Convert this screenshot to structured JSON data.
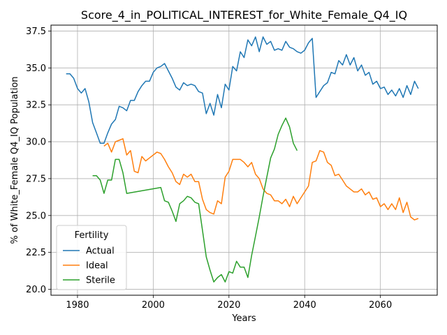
{
  "chart_data": {
    "type": "line",
    "title": "Score_4_in_POLITICAL_INTEREST_for_White_Female_Q4_IQ",
    "xlabel": "Years",
    "ylabel": "% of White_Female Q4_IQ Population",
    "xlim": [
      1973,
      2075
    ],
    "ylim": [
      19.6,
      37.9
    ],
    "xticks": [
      1980,
      2000,
      2020,
      2040,
      2060
    ],
    "yticks": [
      20.0,
      22.5,
      25.0,
      27.5,
      30.0,
      32.5,
      35.0,
      37.5
    ],
    "ytick_labels": [
      "20.0",
      "22.5",
      "25.0",
      "27.5",
      "30.0",
      "32.5",
      "35.0",
      "37.5"
    ],
    "grid": true,
    "legend": {
      "title": "Fertility",
      "placement": "lower-left"
    },
    "series": [
      {
        "name": "Actual",
        "color": "#1f77b4",
        "x": [
          1977,
          1978,
          1979,
          1980,
          1981,
          1982,
          1983,
          1984,
          1985,
          1986,
          1987,
          1988,
          1989,
          1990,
          1991,
          1992,
          1993,
          1994,
          1995,
          1996,
          1997,
          1998,
          1999,
          2000,
          2001,
          2002,
          2003,
          2004,
          2005,
          2006,
          2007,
          2008,
          2009,
          2010,
          2011,
          2012,
          2013,
          2014,
          2015,
          2016,
          2017,
          2018,
          2019,
          2020,
          2021,
          2022,
          2023,
          2024,
          2025,
          2026,
          2027,
          2028,
          2029,
          2030,
          2031,
          2032,
          2033,
          2034,
          2035,
          2036,
          2037,
          2038,
          2039,
          2040,
          2041,
          2042,
          2043,
          2044,
          2045,
          2046,
          2047,
          2048,
          2049,
          2050,
          2051,
          2052,
          2053,
          2054,
          2055,
          2056,
          2057,
          2058,
          2059,
          2060,
          2061,
          2062,
          2063,
          2064,
          2065,
          2066,
          2067,
          2068,
          2069,
          2070
        ],
        "values": [
          34.6,
          34.6,
          34.3,
          33.6,
          33.3,
          33.6,
          32.7,
          31.3,
          30.6,
          29.9,
          29.9,
          30.6,
          31.2,
          31.5,
          32.4,
          32.3,
          32.1,
          32.8,
          32.8,
          33.4,
          33.8,
          34.1,
          34.1,
          34.7,
          35.0,
          35.1,
          35.3,
          34.8,
          34.3,
          33.7,
          33.5,
          34.0,
          33.8,
          33.9,
          33.8,
          33.4,
          33.3,
          31.9,
          32.6,
          31.8,
          33.2,
          32.3,
          33.9,
          33.5,
          35.1,
          34.8,
          36.1,
          35.7,
          36.9,
          36.5,
          37.1,
          36.1,
          37.1,
          36.6,
          36.8,
          36.2,
          36.3,
          36.2,
          36.8,
          36.4,
          36.3,
          36.1,
          36.0,
          36.2,
          36.7,
          37.0,
          33.0,
          33.4,
          33.8,
          34.0,
          34.7,
          34.6,
          35.5,
          35.2,
          35.9,
          35.2,
          35.7,
          34.8,
          35.2,
          34.5,
          34.7,
          33.9,
          34.1,
          33.6,
          33.7,
          33.2,
          33.5,
          33.1,
          33.6,
          33.0,
          33.8,
          33.2,
          34.1,
          33.6
        ]
      },
      {
        "name": "Ideal",
        "color": "#ff7f0e",
        "x": [
          1987,
          1988,
          1989,
          1990,
          1991,
          1992,
          1993,
          1994,
          1995,
          1996,
          1997,
          1998,
          1999,
          2000,
          2001,
          2002,
          2003,
          2004,
          2005,
          2006,
          2007,
          2008,
          2009,
          2010,
          2011,
          2012,
          2013,
          2014,
          2015,
          2016,
          2017,
          2018,
          2019,
          2020,
          2021,
          2022,
          2023,
          2024,
          2025,
          2026,
          2027,
          2028,
          2029,
          2030,
          2031,
          2032,
          2033,
          2034,
          2035,
          2036,
          2037,
          2038,
          2039,
          2040,
          2041,
          2042,
          2043,
          2044,
          2045,
          2046,
          2047,
          2048,
          2049,
          2050,
          2051,
          2052,
          2053,
          2054,
          2055,
          2056,
          2057,
          2058,
          2059,
          2060,
          2061,
          2062,
          2063,
          2064,
          2065,
          2066,
          2067,
          2068,
          2069,
          2070
        ],
        "values": [
          29.7,
          29.9,
          29.3,
          30.0,
          30.1,
          30.2,
          29.1,
          29.4,
          28.0,
          27.9,
          29.0,
          28.7,
          28.9,
          29.1,
          29.3,
          29.2,
          28.8,
          28.3,
          27.9,
          27.3,
          27.1,
          27.8,
          27.6,
          27.8,
          27.3,
          27.3,
          26.1,
          25.4,
          25.2,
          25.1,
          26.0,
          25.8,
          27.6,
          28.0,
          28.8,
          28.8,
          28.8,
          28.6,
          28.3,
          28.6,
          27.8,
          27.5,
          26.8,
          26.5,
          26.4,
          26.0,
          26.0,
          25.8,
          26.1,
          25.6,
          26.3,
          25.8,
          26.2,
          26.6,
          27.0,
          28.6,
          28.7,
          29.4,
          29.3,
          28.6,
          28.4,
          27.7,
          27.8,
          27.4,
          27.0,
          26.8,
          26.6,
          26.6,
          26.8,
          26.4,
          26.6,
          26.1,
          26.2,
          25.6,
          25.8,
          25.4,
          25.8,
          25.4,
          26.2,
          25.2,
          25.9,
          24.9,
          24.7,
          24.8
        ]
      },
      {
        "name": "Sterile",
        "color": "#2ca02c",
        "x": [
          1984,
          1985,
          1986,
          1987,
          1988,
          1989,
          1990,
          1991,
          1992,
          1993,
          2002,
          2003,
          2004,
          2005,
          2006,
          2007,
          2008,
          2009,
          2010,
          2011,
          2012,
          2013,
          2014,
          2015,
          2016,
          2017,
          2018,
          2019,
          2020,
          2021,
          2022,
          2023,
          2024,
          2025,
          2026,
          2027,
          2028,
          2029,
          2030,
          2031,
          2032,
          2033,
          2034,
          2035,
          2036,
          2037,
          2038
        ],
        "values": [
          27.7,
          27.7,
          27.4,
          26.5,
          27.4,
          27.4,
          28.8,
          28.8,
          27.9,
          26.5,
          26.9,
          26.0,
          25.9,
          25.3,
          24.6,
          25.8,
          26.0,
          26.3,
          26.2,
          25.9,
          25.8,
          24.0,
          22.2,
          21.3,
          20.5,
          20.8,
          21.0,
          20.5,
          21.2,
          21.1,
          21.9,
          21.5,
          21.5,
          20.8,
          22.3,
          23.6,
          24.9,
          26.3,
          27.6,
          28.9,
          29.5,
          30.5,
          31.1,
          31.6,
          31.0,
          29.9,
          29.4
        ]
      }
    ]
  }
}
